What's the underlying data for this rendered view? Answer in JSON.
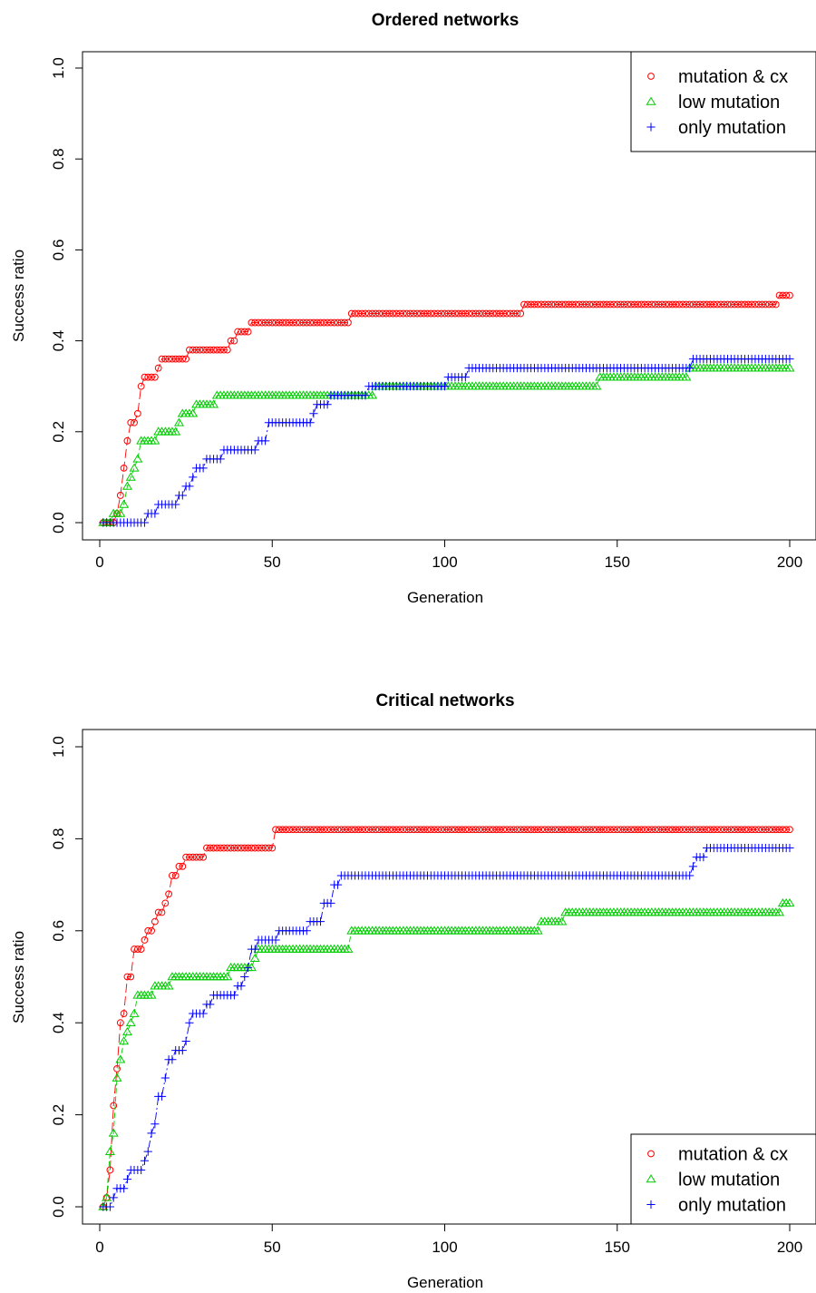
{
  "chart_data": [
    {
      "type": "scatter",
      "title": "Ordered networks",
      "xlabel": "Generation",
      "ylabel": "Success ratio",
      "xlim": [
        0,
        200
      ],
      "ylim": [
        0,
        1
      ],
      "xticks": [
        0,
        50,
        100,
        150,
        200
      ],
      "yticks": [
        0.0,
        0.2,
        0.4,
        0.6,
        0.8,
        1.0
      ],
      "legend_position": "top-right",
      "grid": false,
      "series": [
        {
          "name": "mutation & cx",
          "color": "#ff0000",
          "marker": "circle",
          "steps": [
            [
              1,
              0
            ],
            [
              5,
              0.02
            ],
            [
              6,
              0.06
            ],
            [
              7,
              0.12
            ],
            [
              8,
              0.18
            ],
            [
              9,
              0.22
            ],
            [
              11,
              0.24
            ],
            [
              12,
              0.3
            ],
            [
              13,
              0.32
            ],
            [
              17,
              0.34
            ],
            [
              18,
              0.36
            ],
            [
              26,
              0.38
            ],
            [
              38,
              0.4
            ],
            [
              40,
              0.42
            ],
            [
              44,
              0.44
            ],
            [
              73,
              0.46
            ],
            [
              123,
              0.48
            ],
            [
              197,
              0.5
            ],
            [
              200,
              0.5
            ]
          ]
        },
        {
          "name": "low mutation",
          "color": "#00cd00",
          "marker": "triangle",
          "steps": [
            [
              1,
              0
            ],
            [
              4,
              0.02
            ],
            [
              7,
              0.04
            ],
            [
              8,
              0.08
            ],
            [
              9,
              0.1
            ],
            [
              10,
              0.12
            ],
            [
              11,
              0.14
            ],
            [
              12,
              0.18
            ],
            [
              17,
              0.2
            ],
            [
              23,
              0.22
            ],
            [
              24,
              0.24
            ],
            [
              28,
              0.26
            ],
            [
              34,
              0.28
            ],
            [
              80,
              0.3
            ],
            [
              145,
              0.32
            ],
            [
              171,
              0.34
            ],
            [
              200,
              0.34
            ]
          ]
        },
        {
          "name": "only mutation",
          "color": "#0000ff",
          "marker": "plus",
          "steps": [
            [
              1,
              0
            ],
            [
              14,
              0.02
            ],
            [
              17,
              0.04
            ],
            [
              23,
              0.06
            ],
            [
              25,
              0.08
            ],
            [
              27,
              0.1
            ],
            [
              28,
              0.12
            ],
            [
              31,
              0.14
            ],
            [
              36,
              0.16
            ],
            [
              46,
              0.18
            ],
            [
              49,
              0.22
            ],
            [
              62,
              0.24
            ],
            [
              63,
              0.26
            ],
            [
              67,
              0.28
            ],
            [
              78,
              0.3
            ],
            [
              101,
              0.32
            ],
            [
              107,
              0.34
            ],
            [
              172,
              0.36
            ],
            [
              200,
              0.36
            ]
          ]
        }
      ]
    },
    {
      "type": "scatter",
      "title": "Critical networks",
      "xlabel": "Generation",
      "ylabel": "Success ratio",
      "xlim": [
        0,
        200
      ],
      "ylim": [
        0,
        1
      ],
      "xticks": [
        0,
        50,
        100,
        150,
        200
      ],
      "yticks": [
        0.0,
        0.2,
        0.4,
        0.6,
        0.8,
        1.0
      ],
      "legend_position": "bottom-right",
      "grid": false,
      "series": [
        {
          "name": "mutation & cx",
          "color": "#ff0000",
          "marker": "circle",
          "steps": [
            [
              1,
              0
            ],
            [
              2,
              0.02
            ],
            [
              3,
              0.08
            ],
            [
              4,
              0.22
            ],
            [
              5,
              0.3
            ],
            [
              6,
              0.4
            ],
            [
              7,
              0.42
            ],
            [
              8,
              0.5
            ],
            [
              10,
              0.56
            ],
            [
              13,
              0.58
            ],
            [
              14,
              0.6
            ],
            [
              16,
              0.62
            ],
            [
              17,
              0.64
            ],
            [
              19,
              0.66
            ],
            [
              20,
              0.68
            ],
            [
              21,
              0.72
            ],
            [
              23,
              0.74
            ],
            [
              25,
              0.76
            ],
            [
              31,
              0.78
            ],
            [
              51,
              0.82
            ],
            [
              200,
              0.82
            ]
          ]
        },
        {
          "name": "low mutation",
          "color": "#00cd00",
          "marker": "triangle",
          "steps": [
            [
              1,
              0
            ],
            [
              2,
              0.02
            ],
            [
              3,
              0.12
            ],
            [
              4,
              0.16
            ],
            [
              5,
              0.28
            ],
            [
              6,
              0.32
            ],
            [
              7,
              0.36
            ],
            [
              8,
              0.38
            ],
            [
              9,
              0.4
            ],
            [
              10,
              0.42
            ],
            [
              11,
              0.46
            ],
            [
              16,
              0.48
            ],
            [
              21,
              0.5
            ],
            [
              38,
              0.52
            ],
            [
              45,
              0.54
            ],
            [
              46,
              0.56
            ],
            [
              73,
              0.6
            ],
            [
              128,
              0.62
            ],
            [
              135,
              0.64
            ],
            [
              198,
              0.66
            ],
            [
              200,
              0.66
            ]
          ]
        },
        {
          "name": "only mutation",
          "color": "#0000ff",
          "marker": "plus",
          "steps": [
            [
              1,
              0
            ],
            [
              4,
              0.02
            ],
            [
              5,
              0.04
            ],
            [
              8,
              0.06
            ],
            [
              9,
              0.08
            ],
            [
              13,
              0.1
            ],
            [
              14,
              0.12
            ],
            [
              15,
              0.16
            ],
            [
              16,
              0.18
            ],
            [
              17,
              0.24
            ],
            [
              19,
              0.28
            ],
            [
              20,
              0.32
            ],
            [
              22,
              0.34
            ],
            [
              25,
              0.36
            ],
            [
              26,
              0.4
            ],
            [
              27,
              0.42
            ],
            [
              31,
              0.44
            ],
            [
              33,
              0.46
            ],
            [
              40,
              0.48
            ],
            [
              42,
              0.5
            ],
            [
              43,
              0.52
            ],
            [
              44,
              0.56
            ],
            [
              46,
              0.58
            ],
            [
              52,
              0.6
            ],
            [
              61,
              0.62
            ],
            [
              65,
              0.66
            ],
            [
              68,
              0.7
            ],
            [
              70,
              0.72
            ],
            [
              172,
              0.74
            ],
            [
              173,
              0.76
            ],
            [
              176,
              0.78
            ],
            [
              200,
              0.78
            ]
          ]
        }
      ]
    }
  ]
}
